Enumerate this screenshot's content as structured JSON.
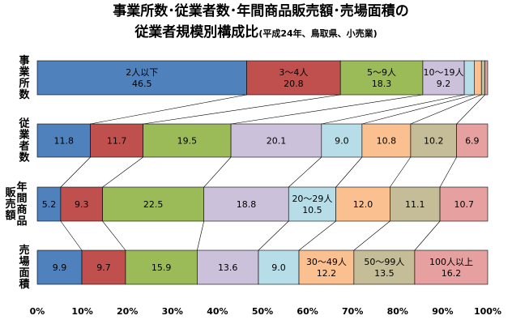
{
  "chart_data": {
    "type": "bar",
    "stacked": true,
    "orientation": "horizontal",
    "normalized_percent": true,
    "title": "事業所数･従業者数･年間商品販売額･売場面積の",
    "title_line2_main": "従業者規模別構成比",
    "title_line2_note": "(平成24年、鳥取県、小売業)",
    "categories": [
      "事業所数",
      "従業者数",
      "年間商品販売額",
      "売場面積"
    ],
    "series": [
      {
        "name": "2人以下",
        "color": "#4f81bd",
        "values": [
          46.5,
          11.8,
          5.2,
          9.9
        ]
      },
      {
        "name": "3～4人",
        "color": "#c0504d",
        "values": [
          20.8,
          11.7,
          9.3,
          9.7
        ]
      },
      {
        "name": "5～9人",
        "color": "#9bbb59",
        "values": [
          18.3,
          19.5,
          22.5,
          15.9
        ]
      },
      {
        "name": "10～19人",
        "color": "#ccc1da",
        "values": [
          9.2,
          20.1,
          18.8,
          13.6
        ]
      },
      {
        "name": "20～29人",
        "color": "#b7dee8",
        "values": [
          2.2,
          9.0,
          10.5,
          9.0
        ]
      },
      {
        "name": "30～49人",
        "color": "#fac090",
        "values": [
          1.6,
          10.8,
          12.0,
          12.2
        ]
      },
      {
        "name": "50～99人",
        "color": "#c4bd97",
        "values": [
          0.8,
          10.2,
          11.1,
          13.5
        ]
      },
      {
        "name": "100人以上",
        "color": "#e6a0a0",
        "values": [
          0.6,
          6.9,
          10.7,
          16.2
        ]
      }
    ],
    "segment_labels": [
      [
        [
          "2人以下",
          "46.5"
        ],
        [
          "3～4人",
          "20.8"
        ],
        [
          "5～9人",
          "18.3"
        ],
        [
          "10～19人",
          "9.2"
        ],
        null,
        null,
        null,
        null
      ],
      [
        [
          "11.8"
        ],
        [
          "11.7"
        ],
        [
          "19.5"
        ],
        [
          "20.1"
        ],
        [
          "9.0"
        ],
        [
          "10.8"
        ],
        [
          "10.2"
        ],
        [
          "6.9"
        ]
      ],
      [
        [
          "5.2"
        ],
        [
          "9.3"
        ],
        [
          "22.5"
        ],
        [
          "18.8"
        ],
        [
          "20～29人",
          "10.5"
        ],
        [
          "12.0"
        ],
        [
          "11.1"
        ],
        [
          "10.7"
        ]
      ],
      [
        [
          "9.9"
        ],
        [
          "9.7"
        ],
        [
          "15.9"
        ],
        [
          "13.6"
        ],
        [
          "9.0"
        ],
        [
          "30～49人",
          "12.2"
        ],
        [
          "50～99人",
          "13.5"
        ],
        [
          "100人以上",
          "16.2"
        ]
      ]
    ],
    "xlim": [
      0,
      100
    ],
    "x_ticks": [
      "0%",
      "10%",
      "20%",
      "30%",
      "40%",
      "50%",
      "60%",
      "70%",
      "80%",
      "90%",
      "100%"
    ],
    "connector_lines": true,
    "legend": "none"
  }
}
